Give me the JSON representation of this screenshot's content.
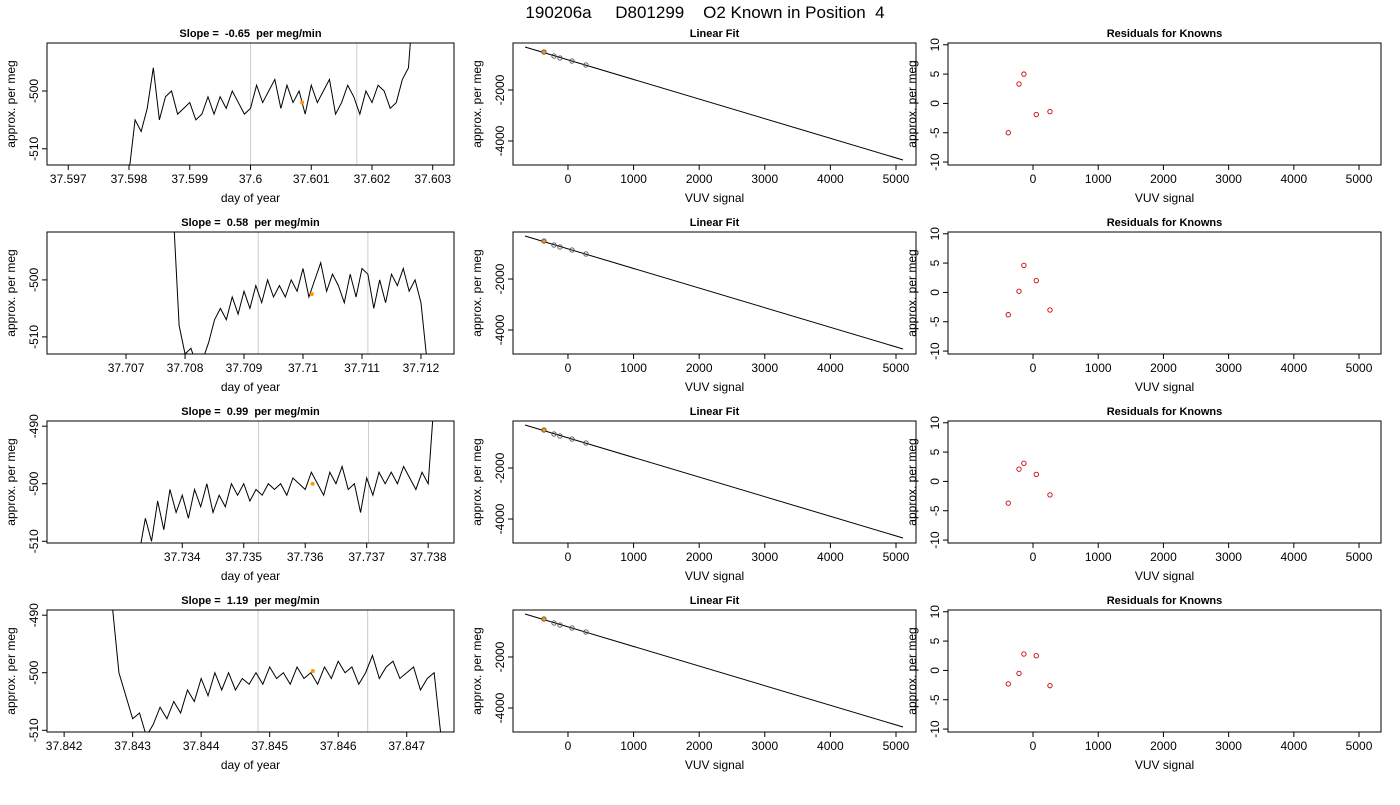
{
  "title": "190206a     D801299    O2 Known in Position  4",
  "chart_data": [
    {
      "type": "line",
      "title": "Slope =  -0.65  per meg/min",
      "x_label": "day of year",
      "y_label": "approx. per meg",
      "xlim": [
        37.59665,
        37.60335
      ],
      "xticks": [
        37.597,
        37.598,
        37.599,
        37.6,
        37.601,
        37.602,
        37.603
      ],
      "ylim": [
        -512.8,
        -491.7
      ],
      "yticks": [
        -510,
        -500
      ],
      "color": "#000000",
      "vlines": [
        37.6,
        37.60175
      ],
      "vline_color": "#cccccc",
      "highlight": {
        "x": 37.60085,
        "value": -502,
        "color": "#ff9900"
      },
      "x": [
        37.598,
        37.5981,
        37.5982,
        37.5983,
        37.5984,
        37.5985,
        37.5986,
        37.5987,
        37.5988,
        37.5989,
        37.599,
        37.5991,
        37.5992,
        37.5993,
        37.5994,
        37.5995,
        37.5996,
        37.5997,
        37.5998,
        37.5999,
        37.6,
        37.6001,
        37.6002,
        37.6003,
        37.6004,
        37.6005,
        37.6006,
        37.6007,
        37.6008,
        37.6009,
        37.601,
        37.6011,
        37.6012,
        37.6013,
        37.6014,
        37.6015,
        37.6016,
        37.6017,
        37.6018,
        37.6019,
        37.602,
        37.6021,
        37.6022,
        37.6023,
        37.6024,
        37.6025,
        37.6026,
        37.6027
      ],
      "values": [
        -514,
        -505,
        -507,
        -503,
        -496,
        -505,
        -501,
        -500,
        -504,
        -503,
        -502,
        -505,
        -504,
        -501,
        -504,
        -501,
        -503,
        -500,
        -502,
        -504,
        -503,
        -499,
        -502,
        -500,
        -498,
        -503,
        -499,
        -502,
        -500,
        -504,
        -499,
        -502,
        -500,
        -498,
        -504,
        -502,
        -499,
        -501,
        -504,
        -500,
        -502,
        -499,
        -500,
        -503,
        -502,
        -498,
        -496,
        -482
      ]
    },
    {
      "type": "scatter",
      "title": "Linear Fit",
      "x_label": "VUV signal",
      "y_label": "approx. per meg",
      "xlim": [
        -838,
        5305
      ],
      "xticks": [
        0,
        1000,
        2000,
        3000,
        4000,
        5000
      ],
      "ylim": [
        -4941,
        -157
      ],
      "yticks": [
        -4000,
        -2000
      ],
      "fit_line": {
        "x": [
          -655,
          5107
        ],
        "y": [
          -314,
          -4745
        ],
        "color": "#000000"
      },
      "points": {
        "x": [
          -366,
          -213,
          -122,
          61,
          274
        ],
        "values": [
          -510,
          -667,
          -745,
          -863,
          -1020
        ],
        "color": "#555555"
      },
      "highlight": {
        "x": -366,
        "value": -510,
        "color": "#ff9900"
      }
    },
    {
      "type": "scatter",
      "title": "Residuals for Knowns",
      "x_label": "VUV signal",
      "y_label": "approx. per meg",
      "xlim": [
        -1304,
        5337
      ],
      "xticks": [
        0,
        1000,
        2000,
        3000,
        4000,
        5000
      ],
      "ylim": [
        -10.5,
        10.3
      ],
      "yticks": [
        -10,
        -5,
        0,
        5,
        10
      ],
      "points": {
        "x": [
          -380,
          -215,
          -140,
          50,
          260
        ],
        "values": [
          -5,
          3.3,
          5,
          -1.9,
          -1.4
        ],
        "color": "#cc0000"
      }
    },
    {
      "type": "line",
      "title": "Slope =  0.58  per meg/min",
      "x_label": "day of year",
      "y_label": "approx. per meg",
      "xlim": [
        37.70566,
        37.71256
      ],
      "xticks": [
        37.707,
        37.708,
        37.709,
        37.71,
        37.711,
        37.712
      ],
      "ylim": [
        -513.0,
        -491.6
      ],
      "yticks": [
        -510,
        -500
      ],
      "color": "#000000",
      "vlines": [
        37.70924,
        37.7111
      ],
      "vline_color": "#cccccc",
      "highlight": {
        "x": 37.71015,
        "value": -502.5,
        "color": "#ff9900"
      },
      "x": [
        37.7078,
        37.7079,
        37.708,
        37.7081,
        37.7082,
        37.7083,
        37.7084,
        37.7085,
        37.7086,
        37.7087,
        37.7088,
        37.7089,
        37.709,
        37.7091,
        37.7092,
        37.7093,
        37.7094,
        37.7095,
        37.7096,
        37.7097,
        37.7098,
        37.7099,
        37.71,
        37.7101,
        37.7102,
        37.7103,
        37.7104,
        37.7105,
        37.7106,
        37.7107,
        37.7108,
        37.7109,
        37.711,
        37.7111,
        37.7112,
        37.7113,
        37.7114,
        37.7115,
        37.7116,
        37.7117,
        37.7118,
        37.7119,
        37.712,
        37.7121
      ],
      "values": [
        -488,
        -508,
        -513,
        -512,
        -515,
        -514,
        -511,
        -507,
        -505,
        -507,
        -503,
        -506,
        -502,
        -505,
        -501,
        -504,
        -500,
        -503,
        -501,
        -503,
        -500,
        -502,
        -498,
        -503,
        -500,
        -497,
        -502,
        -499,
        -501,
        -504,
        -499,
        -503,
        -498,
        -499,
        -505,
        -500,
        -504,
        -499,
        -501,
        -498,
        -502,
        -500,
        -504,
        -514
      ]
    },
    {
      "type": "scatter",
      "title": "Linear Fit",
      "x_label": "VUV signal",
      "y_label": "approx. per meg",
      "xlim": [
        -838,
        5305
      ],
      "xticks": [
        0,
        1000,
        2000,
        3000,
        4000,
        5000
      ],
      "ylim": [
        -4941,
        -157
      ],
      "yticks": [
        -4000,
        -2000
      ],
      "fit_line": {
        "x": [
          -655,
          5107
        ],
        "y": [
          -314,
          -4745
        ],
        "color": "#000000"
      },
      "points": {
        "x": [
          -366,
          -213,
          -122,
          61,
          274
        ],
        "values": [
          -510,
          -667,
          -745,
          -863,
          -1020
        ],
        "color": "#555555"
      },
      "highlight": {
        "x": -366,
        "value": -510,
        "color": "#ff9900"
      }
    },
    {
      "type": "scatter",
      "title": "Residuals for Knowns",
      "x_label": "VUV signal",
      "y_label": "approx. per meg",
      "xlim": [
        -1304,
        5337
      ],
      "xticks": [
        0,
        1000,
        2000,
        3000,
        4000,
        5000
      ],
      "ylim": [
        -10.5,
        10.3
      ],
      "yticks": [
        -10,
        -5,
        0,
        5,
        10
      ],
      "points": {
        "x": [
          -380,
          -215,
          -140,
          50,
          260
        ],
        "values": [
          -3.8,
          0.2,
          4.6,
          2.0,
          -3.0
        ],
        "color": "#cc0000"
      }
    },
    {
      "type": "line",
      "title": "Slope =  0.99  per meg/min",
      "x_label": "day of year",
      "y_label": "approx. per meg",
      "xlim": [
        37.7318,
        37.73842
      ],
      "xticks": [
        37.734,
        37.735,
        37.736,
        37.737,
        37.738
      ],
      "ylim": [
        -510.3,
        -489.1
      ],
      "yticks": [
        -510,
        -500,
        -490
      ],
      "color": "#000000",
      "vlines": [
        37.73524,
        37.73703
      ],
      "vline_color": "#cccccc",
      "highlight": {
        "x": 37.73612,
        "value": -500,
        "color": "#ff9900"
      },
      "x": [
        37.7333,
        37.7334,
        37.7335,
        37.7336,
        37.7337,
        37.7338,
        37.7339,
        37.734,
        37.7341,
        37.7342,
        37.7343,
        37.7344,
        37.7345,
        37.7346,
        37.7347,
        37.7348,
        37.7349,
        37.735,
        37.7351,
        37.7352,
        37.7353,
        37.7354,
        37.7355,
        37.7356,
        37.7357,
        37.7358,
        37.7359,
        37.736,
        37.7361,
        37.7362,
        37.7363,
        37.7364,
        37.7365,
        37.7366,
        37.7367,
        37.7368,
        37.7369,
        37.737,
        37.7371,
        37.7372,
        37.7373,
        37.7374,
        37.7375,
        37.7376,
        37.7377,
        37.7378,
        37.7379,
        37.738,
        37.7381
      ],
      "values": [
        -512,
        -506,
        -510,
        -503,
        -508,
        -501,
        -505,
        -502,
        -506,
        -501,
        -504,
        -500,
        -505,
        -502,
        -504,
        -500,
        -502,
        -500,
        -503,
        -501,
        -502,
        -500,
        -501,
        -500,
        -502,
        -499,
        -500,
        -501,
        -498,
        -500,
        -502,
        -498,
        -500,
        -497,
        -501,
        -500,
        -505,
        -499,
        -502,
        -498,
        -500,
        -498,
        -500,
        -497,
        -499,
        -501,
        -498,
        -500,
        -485
      ]
    },
    {
      "type": "scatter",
      "title": "Linear Fit",
      "x_label": "VUV signal",
      "y_label": "approx. per meg",
      "xlim": [
        -838,
        5305
      ],
      "xticks": [
        0,
        1000,
        2000,
        3000,
        4000,
        5000
      ],
      "ylim": [
        -4941,
        -157
      ],
      "yticks": [
        -4000,
        -2000
      ],
      "fit_line": {
        "x": [
          -655,
          5107
        ],
        "y": [
          -314,
          -4745
        ],
        "color": "#000000"
      },
      "points": {
        "x": [
          -366,
          -213,
          -122,
          61,
          274
        ],
        "values": [
          -510,
          -667,
          -745,
          -863,
          -1020
        ],
        "color": "#555555"
      },
      "highlight": {
        "x": -366,
        "value": -510,
        "color": "#ff9900"
      }
    },
    {
      "type": "scatter",
      "title": "Residuals for Knowns",
      "x_label": "VUV signal",
      "y_label": "approx. per meg",
      "xlim": [
        -1304,
        5337
      ],
      "xticks": [
        0,
        1000,
        2000,
        3000,
        4000,
        5000
      ],
      "ylim": [
        -10.5,
        10.3
      ],
      "yticks": [
        -10,
        -5,
        0,
        5,
        10
      ],
      "points": {
        "x": [
          -380,
          -215,
          -140,
          50,
          260
        ],
        "values": [
          -3.7,
          2.1,
          3.1,
          1.2,
          -2.3
        ],
        "color": "#cc0000"
      }
    },
    {
      "type": "line",
      "title": "Slope =  1.19  per meg/min",
      "x_label": "day of year",
      "y_label": "approx. per meg",
      "xlim": [
        37.84175,
        37.84769
      ],
      "xticks": [
        37.842,
        37.843,
        37.844,
        37.845,
        37.846,
        37.847
      ],
      "ylim": [
        -510.3,
        -489.1
      ],
      "yticks": [
        -510,
        -500,
        -490
      ],
      "color": "#000000",
      "vlines": [
        37.84483,
        37.84643
      ],
      "vline_color": "#cccccc",
      "highlight": {
        "x": 37.84563,
        "value": -499.7,
        "color": "#ff9900"
      },
      "x": [
        37.8427,
        37.8428,
        37.8429,
        37.843,
        37.8431,
        37.8432,
        37.8433,
        37.8434,
        37.8435,
        37.8436,
        37.8437,
        37.8438,
        37.8439,
        37.844,
        37.8441,
        37.8442,
        37.8443,
        37.8444,
        37.8445,
        37.8446,
        37.8447,
        37.8448,
        37.8449,
        37.845,
        37.8451,
        37.8452,
        37.8453,
        37.8454,
        37.8455,
        37.8456,
        37.8457,
        37.8458,
        37.8459,
        37.846,
        37.8461,
        37.8462,
        37.8463,
        37.8464,
        37.8465,
        37.8466,
        37.8467,
        37.8468,
        37.8469,
        37.847,
        37.8471,
        37.8472,
        37.8473,
        37.8474,
        37.8475
      ],
      "values": [
        -488,
        -500,
        -504,
        -508,
        -507,
        -511,
        -509,
        -506,
        -508,
        -505,
        -507,
        -503,
        -505,
        -501,
        -504,
        -500,
        -503,
        -500,
        -503,
        -501,
        -502,
        -500,
        -502,
        -499,
        -501,
        -500,
        -502,
        -499,
        -501,
        -500,
        -502,
        -499,
        -501,
        -498,
        -500,
        -499,
        -502,
        -500,
        -497,
        -501,
        -499,
        -498,
        -501,
        -500,
        -499,
        -503,
        -501,
        -500,
        -511
      ]
    },
    {
      "type": "scatter",
      "title": "Linear Fit",
      "x_label": "VUV signal",
      "y_label": "approx. per meg",
      "xlim": [
        -838,
        5305
      ],
      "xticks": [
        0,
        1000,
        2000,
        3000,
        4000,
        5000
      ],
      "ylim": [
        -4941,
        -157
      ],
      "yticks": [
        -4000,
        -2000
      ],
      "fit_line": {
        "x": [
          -655,
          5107
        ],
        "y": [
          -314,
          -4745
        ],
        "color": "#000000"
      },
      "points": {
        "x": [
          -366,
          -213,
          -122,
          61,
          274
        ],
        "values": [
          -510,
          -667,
          -745,
          -863,
          -1020
        ],
        "color": "#555555"
      },
      "highlight": {
        "x": -366,
        "value": -510,
        "color": "#ff9900"
      }
    },
    {
      "type": "scatter",
      "title": "Residuals for Knowns",
      "x_label": "VUV signal",
      "y_label": "approx. per meg",
      "xlim": [
        -1304,
        5337
      ],
      "xticks": [
        0,
        1000,
        2000,
        3000,
        4000,
        5000
      ],
      "ylim": [
        -10.5,
        10.3
      ],
      "yticks": [
        -10,
        -5,
        0,
        5,
        10
      ],
      "points": {
        "x": [
          -380,
          -215,
          -140,
          50,
          260
        ],
        "values": [
          -2.3,
          -0.5,
          2.8,
          2.5,
          -2.6
        ],
        "color": "#cc0000"
      }
    }
  ]
}
